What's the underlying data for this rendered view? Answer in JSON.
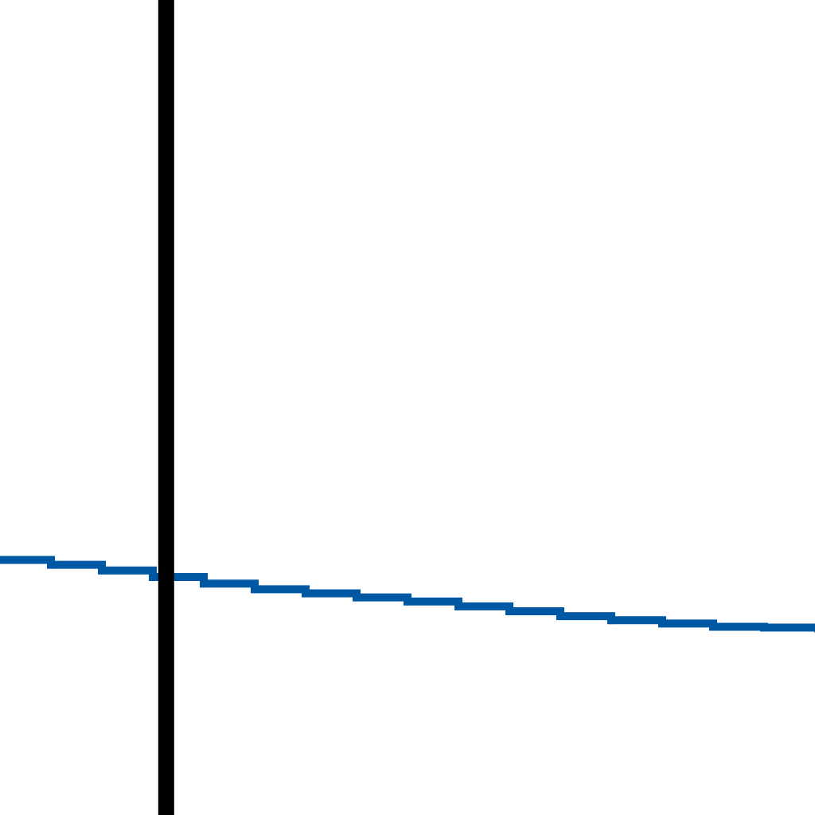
{
  "chart_data": {
    "type": "line",
    "title": "",
    "xlabel": "",
    "ylabel": "",
    "grid": false,
    "series": [
      {
        "color": "#0057a4",
        "x": [
          0,
          10,
          20,
          30,
          40,
          50,
          60,
          70,
          80,
          90,
          100,
          110,
          120,
          130,
          140,
          150,
          160
        ],
        "y": [
          68.7,
          69.3,
          70.0,
          70.8,
          71.6,
          72.3,
          72.8,
          73.3,
          73.8,
          74.4,
          75.0,
          75.6,
          76.1,
          76.5,
          76.9,
          77.0,
          77.1
        ]
      }
    ],
    "xlim": [
      0,
      160
    ],
    "ylim": [
      0,
      100
    ],
    "y_axis_at_x": 32,
    "axis_color": "#000000"
  }
}
